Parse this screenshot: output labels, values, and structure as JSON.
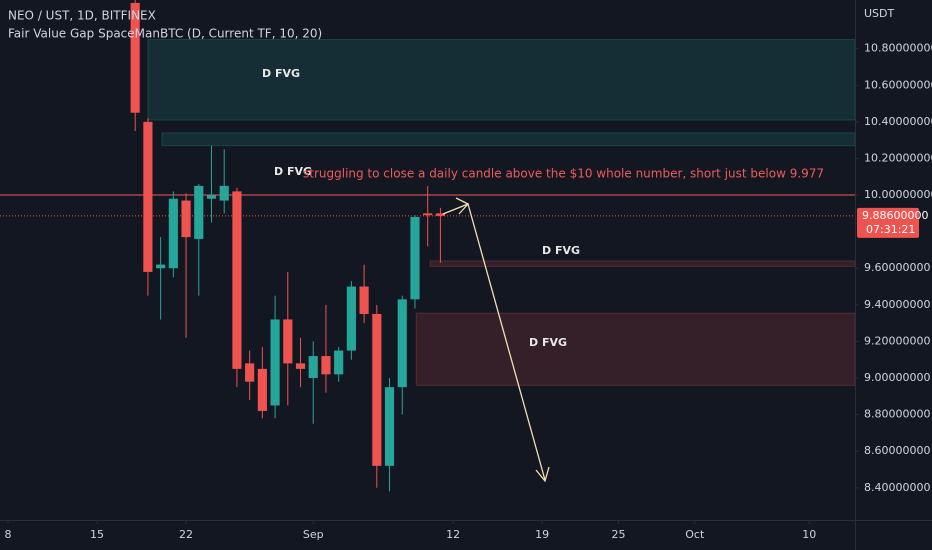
{
  "chart_data": {
    "type": "candlestick",
    "title": "NEO / UST, 1D, BITFINEX",
    "subtitle": "Fair Value Gap SpaceManBTC (D, Current TF, 10, 20)",
    "y_axis_label": "USDT",
    "annotation": "struggling to close a daily candle above the $10 whole number, short just below 9.977",
    "up_color": "#26a69a",
    "down_color": "#ef5350",
    "x": [
      10,
      11,
      12,
      13,
      14,
      15,
      16,
      17,
      18,
      19,
      20,
      21,
      22,
      23,
      24,
      25,
      26,
      27,
      28,
      29,
      30,
      31,
      32,
      33,
      34
    ],
    "open": [
      11.05,
      10.4,
      9.6,
      9.6,
      9.97,
      9.76,
      9.98,
      9.97,
      10.02,
      9.08,
      9.05,
      8.85,
      9.32,
      9.08,
      9.0,
      9.12,
      9.02,
      9.15,
      9.5,
      9.35,
      8.52,
      8.95,
      9.43,
      9.9,
      9.9
    ],
    "high": [
      11.07,
      10.42,
      9.77,
      10.02,
      10.01,
      10.06,
      10.27,
      10.25,
      10.04,
      9.15,
      9.17,
      9.45,
      9.58,
      9.22,
      9.2,
      9.4,
      9.17,
      9.53,
      9.62,
      9.4,
      9.0,
      9.45,
      9.89,
      10.05,
      9.93
    ],
    "low": [
      10.35,
      9.45,
      9.32,
      9.55,
      9.22,
      9.45,
      9.85,
      9.9,
      8.95,
      8.88,
      8.78,
      8.78,
      8.85,
      8.95,
      8.75,
      8.92,
      8.98,
      9.1,
      9.3,
      8.4,
      8.38,
      8.8,
      9.38,
      9.72,
      9.63
    ],
    "close": [
      10.45,
      9.58,
      9.62,
      9.98,
      9.77,
      10.05,
      10.0,
      10.05,
      9.05,
      8.98,
      8.82,
      9.32,
      9.08,
      9.05,
      9.12,
      9.02,
      9.15,
      9.5,
      9.35,
      8.52,
      8.95,
      9.43,
      9.88,
      9.89,
      9.886
    ],
    "xlim": [
      -0.63,
      66.6
    ],
    "xticks": [
      {
        "value": 0,
        "label": "8"
      },
      {
        "value": 7,
        "label": "15"
      },
      {
        "value": 14,
        "label": "22"
      },
      {
        "value": 24,
        "label": "Sep"
      },
      {
        "value": 35,
        "label": "12"
      },
      {
        "value": 42,
        "label": "19"
      },
      {
        "value": 48,
        "label": "25"
      },
      {
        "value": 54,
        "label": "Oct"
      },
      {
        "value": 63,
        "label": "10"
      }
    ],
    "ylim": [
      8.224,
      11.066
    ],
    "yticks": [
      {
        "value": 8.4,
        "label": "8.40000000"
      },
      {
        "value": 8.6,
        "label": "8.60000000"
      },
      {
        "value": 8.8,
        "label": "8.80000000"
      },
      {
        "value": 9.0,
        "label": "9.00000000"
      },
      {
        "value": 9.2,
        "label": "9.20000000"
      },
      {
        "value": 9.4,
        "label": "9.40000000"
      },
      {
        "value": 9.6,
        "label": "9.60000000"
      },
      {
        "value": 10.0,
        "label": "10.00000000"
      },
      {
        "value": 10.2,
        "label": "10.20000000"
      },
      {
        "value": 10.4,
        "label": "10.40000000"
      },
      {
        "value": 10.6,
        "label": "10.60000000"
      },
      {
        "value": 10.8,
        "label": "10.80000000"
      }
    ],
    "last_price": {
      "value": 9.886,
      "label": "9.88600000",
      "countdown": "07:31:21"
    },
    "hline": {
      "value": 10.0,
      "color": "#f05a5a"
    },
    "zones": [
      {
        "start": 11.0,
        "top": 10.85,
        "bottom": 10.41,
        "color": "#26a69a",
        "label": "D FVG"
      },
      {
        "start": 12.1,
        "top": 10.34,
        "bottom": 10.27,
        "color": "#26a69a"
      },
      {
        "start": 33.2,
        "top": 9.64,
        "bottom": 9.61,
        "color": "#ef5350",
        "label": "D FVG"
      },
      {
        "start": 32.1,
        "top": 9.355,
        "bottom": 8.96,
        "color": "#ef5350",
        "label": "D FVG"
      }
    ],
    "zone_note": "D FVG"
  }
}
